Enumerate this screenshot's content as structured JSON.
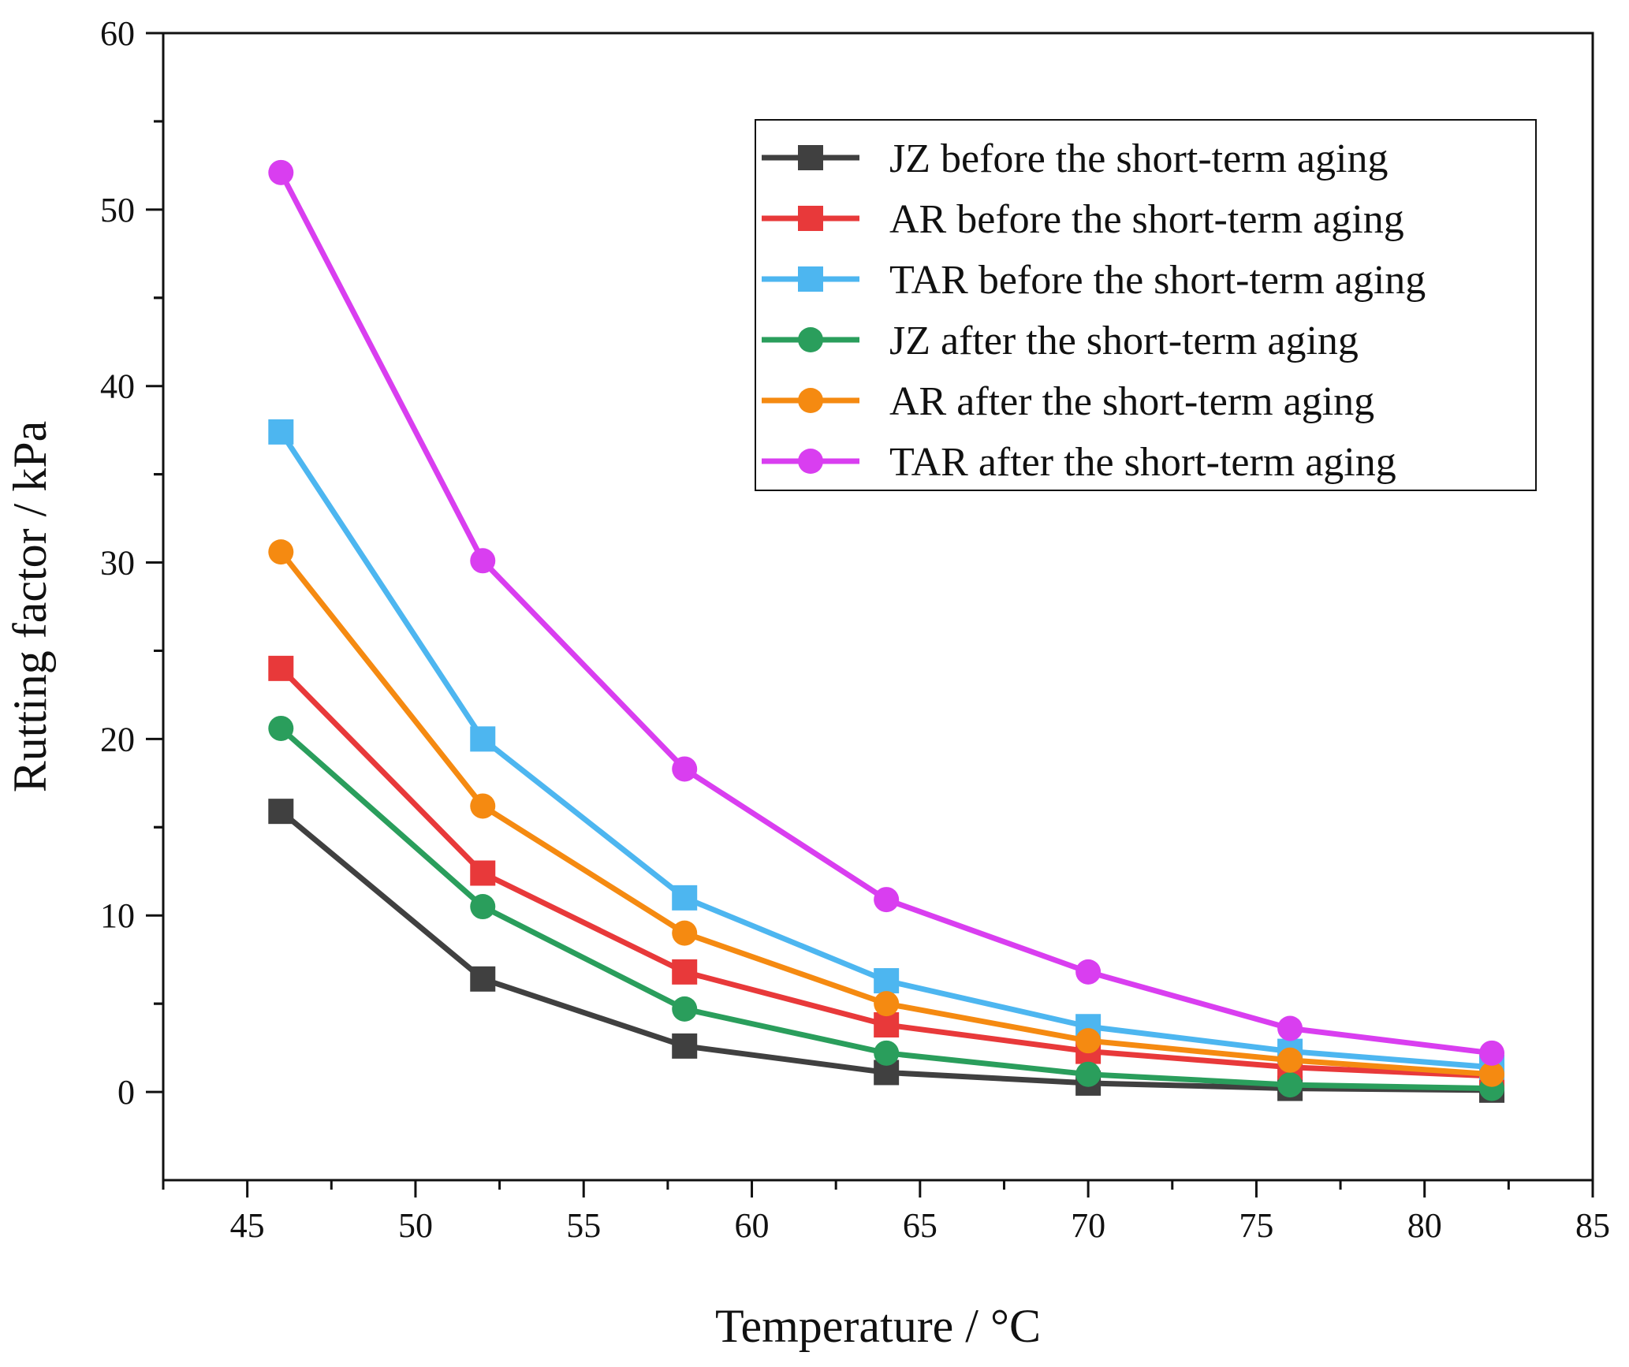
{
  "chart_data": {
    "type": "line",
    "title": "",
    "xlabel": "Temperature / °C",
    "ylabel": "Rutting factor / kPa",
    "xlim": [
      42.5,
      85
    ],
    "ylim": [
      -5,
      60
    ],
    "x_ticks": [
      45,
      50,
      55,
      60,
      65,
      70,
      75,
      80,
      85
    ],
    "y_ticks": [
      0,
      10,
      20,
      30,
      40,
      50,
      60
    ],
    "grid": false,
    "legend_position": "top-right",
    "x": [
      46,
      52,
      58,
      64,
      70,
      76,
      82
    ],
    "series": [
      {
        "name": "JZ before the short-term aging",
        "color": "#404040",
        "marker": "square",
        "values": [
          15.9,
          6.4,
          2.6,
          1.1,
          0.5,
          0.2,
          0.1
        ]
      },
      {
        "name": "AR before the short-term aging",
        "color": "#e8393a",
        "marker": "square",
        "values": [
          24.0,
          12.4,
          6.8,
          3.8,
          2.3,
          1.4,
          0.9
        ]
      },
      {
        "name": "TAR before the short-term aging",
        "color": "#4db6f0",
        "marker": "square",
        "values": [
          37.4,
          20.0,
          11.0,
          6.3,
          3.7,
          2.3,
          1.4
        ]
      },
      {
        "name": "JZ after the short-term aging",
        "color": "#2a9e5c",
        "marker": "circle",
        "values": [
          20.6,
          10.5,
          4.7,
          2.2,
          1.0,
          0.4,
          0.2
        ]
      },
      {
        "name": "AR after the short-term aging",
        "color": "#f58a11",
        "marker": "circle",
        "values": [
          30.6,
          16.2,
          9.0,
          5.0,
          2.9,
          1.8,
          1.0
        ]
      },
      {
        "name": "TAR after the short-term aging",
        "color": "#d93ef0",
        "marker": "circle",
        "values": [
          52.1,
          30.1,
          18.3,
          10.9,
          6.8,
          3.6,
          2.2
        ]
      }
    ]
  }
}
